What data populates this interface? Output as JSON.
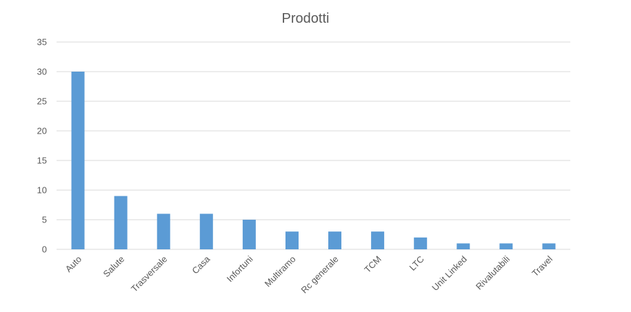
{
  "chart_data": {
    "type": "bar",
    "title": "Prodotti",
    "xlabel": "",
    "ylabel": "",
    "categories": [
      "Auto",
      "Salute",
      "Trasversale",
      "Casa",
      "Infortuni",
      "Multiramo",
      "Rc generale",
      "TCM",
      "LTC",
      "Unit Linked",
      "Rivalutabili",
      "Travel"
    ],
    "series": [
      {
        "values": [
          30,
          9,
          6,
          6,
          5,
          3,
          3,
          3,
          2,
          1,
          1,
          1
        ],
        "color": "#5b9bd5"
      }
    ],
    "ylim": [
      0,
      35
    ],
    "yticks": [
      0,
      5,
      10,
      15,
      20,
      25,
      30,
      35
    ],
    "grid": true,
    "legend": "none",
    "colors": {
      "bar": "#5b9bd5",
      "grid": "#d9d9d9",
      "text": "#595959"
    }
  }
}
